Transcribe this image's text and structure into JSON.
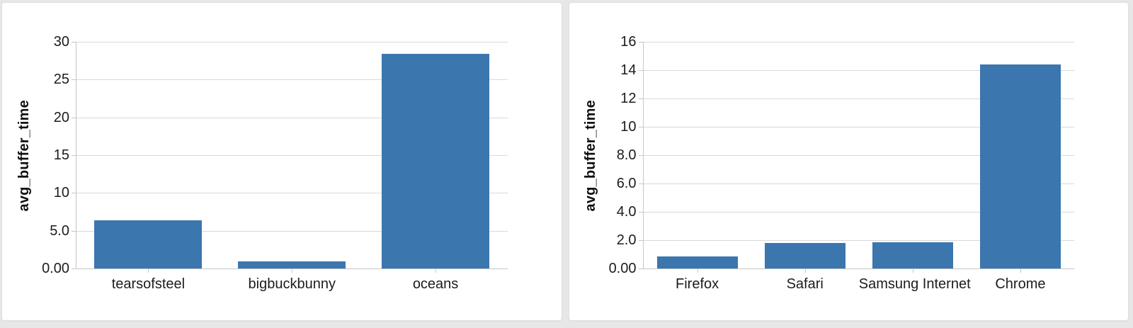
{
  "style": {
    "bar_color": "#3b76af",
    "grid_color": "#d9d9d9",
    "axis_color": "#c6c6c6",
    "tick_color": "#c6c6c6",
    "text_color": "#1c1c1c",
    "page_background": "#e7e7e7",
    "card_background": "#ffffff",
    "card_border": "#e0e0e0"
  },
  "chart_data": [
    {
      "type": "bar",
      "title": "",
      "xlabel": "",
      "ylabel": "avg_buffer_time",
      "categories": [
        "tearsofsteel",
        "bigbuckbunny",
        "oceans"
      ],
      "values": [
        6.4,
        0.9,
        28.4
      ],
      "ylim": [
        0,
        30
      ],
      "yticks": [
        {
          "value": 0,
          "label": "0.00"
        },
        {
          "value": 5,
          "label": "5.0"
        },
        {
          "value": 10,
          "label": "10"
        },
        {
          "value": 15,
          "label": "15"
        },
        {
          "value": 20,
          "label": "20"
        },
        {
          "value": 25,
          "label": "25"
        },
        {
          "value": 30,
          "label": "30"
        }
      ],
      "grid": true,
      "legend": false,
      "bar_band_fraction": 0.75
    },
    {
      "type": "bar",
      "title": "",
      "xlabel": "",
      "ylabel": "avg_buffer_time",
      "categories": [
        "Firefox",
        "Safari",
        "Samsung Internet",
        "Chrome"
      ],
      "values": [
        0.85,
        1.8,
        1.85,
        14.4
      ],
      "ylim": [
        0,
        16
      ],
      "yticks": [
        {
          "value": 0,
          "label": "0.00"
        },
        {
          "value": 2,
          "label": "2.0"
        },
        {
          "value": 4,
          "label": "4.0"
        },
        {
          "value": 6,
          "label": "6.0"
        },
        {
          "value": 8,
          "label": "8.0"
        },
        {
          "value": 10,
          "label": "10"
        },
        {
          "value": 12,
          "label": "12"
        },
        {
          "value": 14,
          "label": "14"
        },
        {
          "value": 16,
          "label": "16"
        }
      ],
      "grid": true,
      "legend": false,
      "bar_band_fraction": 0.75
    }
  ]
}
